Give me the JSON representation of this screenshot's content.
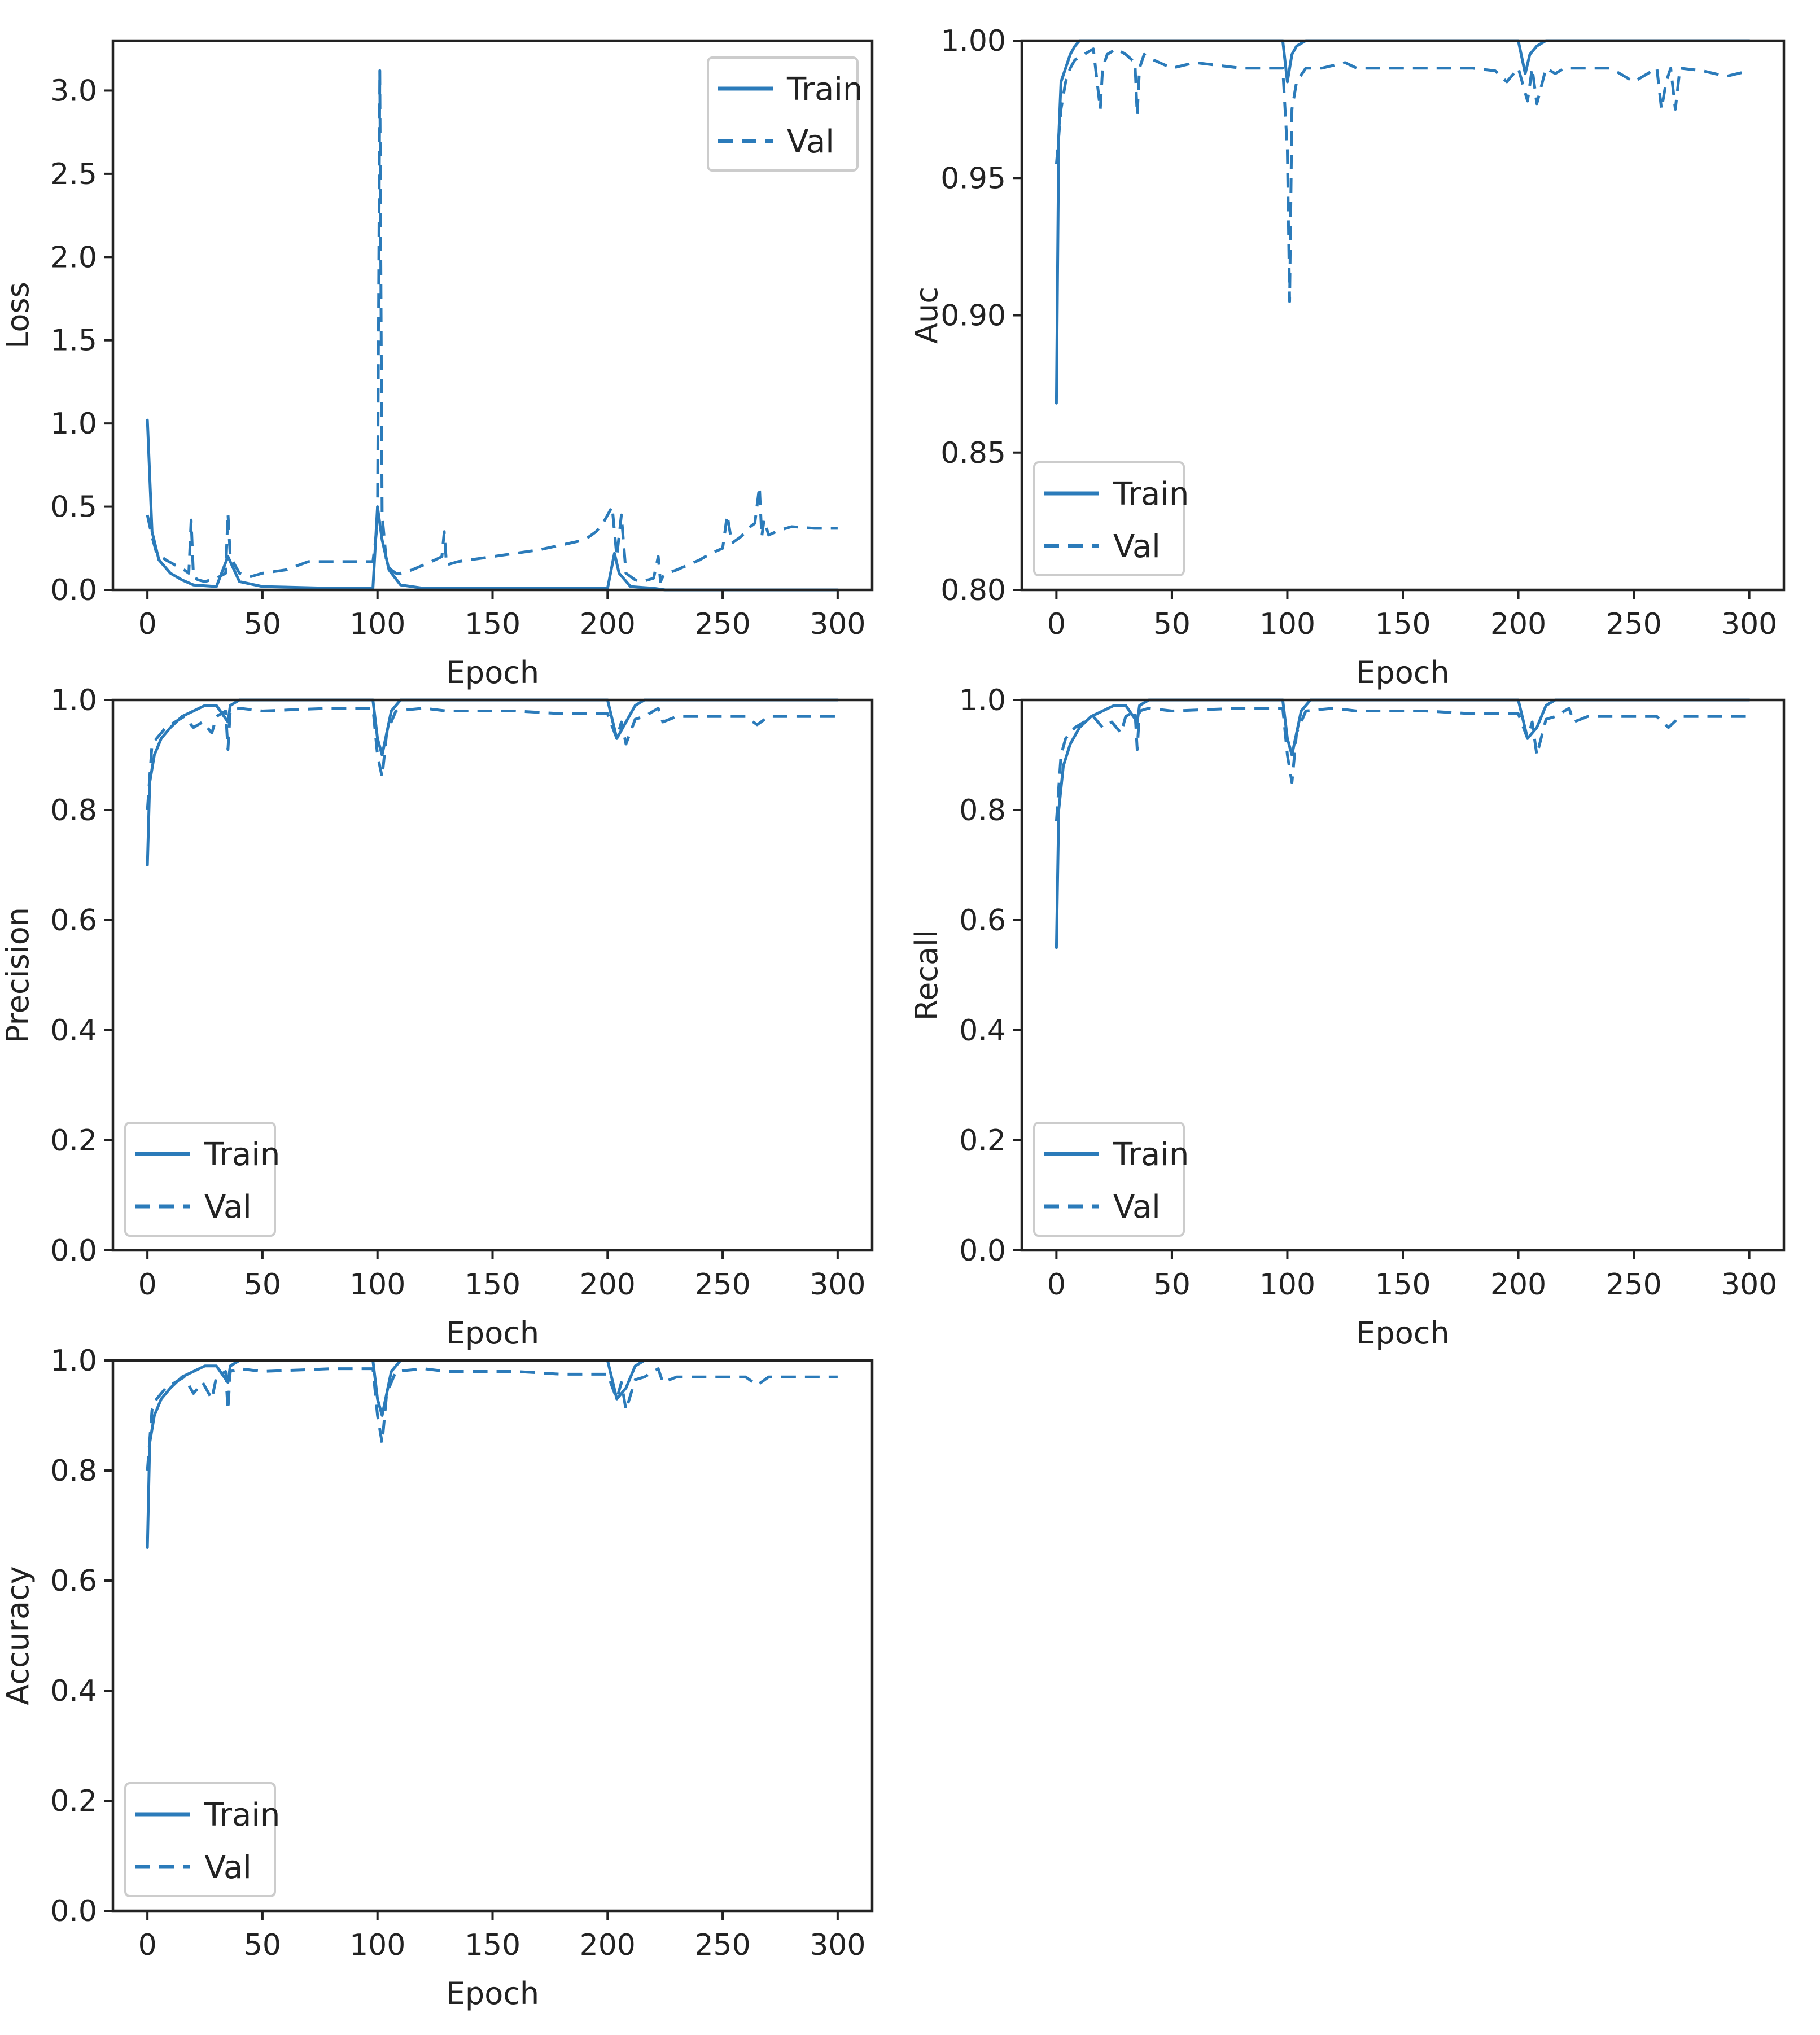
{
  "colors": {
    "series": "#2b7bba",
    "axis": "#222222",
    "legend_border": "#cccccc"
  },
  "chart_data": [
    {
      "id": "loss",
      "type": "line",
      "ylabel": "Loss",
      "xlabel": "Epoch",
      "xlim": [
        -15,
        315
      ],
      "ylim": [
        0,
        3.3
      ],
      "xticks": [
        0,
        50,
        100,
        150,
        200,
        250,
        300
      ],
      "yticks": [
        0.0,
        0.5,
        1.0,
        1.5,
        2.0,
        2.5,
        3.0
      ],
      "ytick_labels": [
        "0.0",
        "0.5",
        "1.0",
        "1.5",
        "2.0",
        "2.5",
        "3.0"
      ],
      "legend_loc": "upper right",
      "series": [
        {
          "name": "Train",
          "style": "solid",
          "x": [
            0,
            2,
            5,
            10,
            15,
            20,
            30,
            35,
            40,
            50,
            80,
            98,
            100,
            102,
            105,
            110,
            120,
            150,
            200,
            203,
            205,
            210,
            220,
            225,
            250,
            300
          ],
          "y": [
            1.02,
            0.35,
            0.18,
            0.1,
            0.06,
            0.03,
            0.02,
            0.2,
            0.05,
            0.02,
            0.01,
            0.01,
            0.5,
            0.3,
            0.12,
            0.03,
            0.01,
            0.01,
            0.01,
            0.22,
            0.1,
            0.02,
            0.01,
            0.0,
            0.0,
            0.0
          ]
        },
        {
          "name": "Val",
          "style": "dashed",
          "x": [
            0,
            2,
            4,
            8,
            12,
            16,
            18,
            19,
            20,
            22,
            25,
            30,
            34,
            35,
            36,
            38,
            40,
            45,
            50,
            60,
            70,
            80,
            90,
            98,
            100,
            101,
            102,
            104,
            106,
            108,
            110,
            115,
            120,
            125,
            128,
            129,
            130,
            135,
            140,
            150,
            160,
            170,
            180,
            190,
            195,
            198,
            200,
            202,
            204,
            206,
            208,
            210,
            212,
            215,
            220,
            222,
            223,
            224,
            226,
            230,
            235,
            240,
            245,
            250,
            252,
            254,
            256,
            258,
            260,
            262,
            264,
            266,
            267,
            268,
            270,
            275,
            280,
            290,
            300
          ],
          "y": [
            0.45,
            0.32,
            0.22,
            0.18,
            0.15,
            0.12,
            0.1,
            0.42,
            0.08,
            0.06,
            0.05,
            0.07,
            0.1,
            0.46,
            0.2,
            0.15,
            0.1,
            0.08,
            0.1,
            0.12,
            0.17,
            0.17,
            0.17,
            0.17,
            0.4,
            3.12,
            0.45,
            0.15,
            0.12,
            0.1,
            0.1,
            0.12,
            0.15,
            0.18,
            0.2,
            0.35,
            0.15,
            0.17,
            0.18,
            0.2,
            0.22,
            0.24,
            0.27,
            0.3,
            0.35,
            0.4,
            0.45,
            0.5,
            0.2,
            0.45,
            0.1,
            0.08,
            0.06,
            0.05,
            0.07,
            0.2,
            0.05,
            0.08,
            0.1,
            0.12,
            0.15,
            0.18,
            0.22,
            0.25,
            0.45,
            0.28,
            0.3,
            0.32,
            0.35,
            0.38,
            0.4,
            0.62,
            0.32,
            0.42,
            0.33,
            0.36,
            0.38,
            0.37,
            0.37
          ]
        }
      ]
    },
    {
      "id": "auc",
      "type": "line",
      "ylabel": "Auc",
      "xlabel": "Epoch",
      "xlim": [
        -15,
        315
      ],
      "ylim": [
        0.8,
        1.0
      ],
      "xticks": [
        0,
        50,
        100,
        150,
        200,
        250,
        300
      ],
      "yticks": [
        0.8,
        0.85,
        0.9,
        0.95,
        1.0
      ],
      "ytick_labels": [
        "0.80",
        "0.85",
        "0.90",
        "0.95",
        "1.00"
      ],
      "legend_loc": "lower left",
      "series": [
        {
          "name": "Train",
          "style": "solid",
          "x": [
            0,
            1,
            2,
            4,
            6,
            8,
            10,
            15,
            20,
            30,
            40,
            98,
            100,
            102,
            104,
            108,
            112,
            200,
            203,
            205,
            208,
            212,
            220,
            300
          ],
          "y": [
            0.868,
            0.965,
            0.985,
            0.99,
            0.995,
            0.998,
            1.0,
            1.0,
            1.0,
            1.0,
            1.0,
            1.0,
            0.985,
            0.995,
            0.998,
            1.0,
            1.0,
            1.0,
            0.988,
            0.995,
            0.998,
            1.0,
            1.0,
            1.0
          ]
        },
        {
          "name": "Val",
          "style": "dashed",
          "x": [
            0,
            2,
            4,
            6,
            8,
            12,
            16,
            19,
            20,
            22,
            26,
            30,
            34,
            35,
            36,
            38,
            42,
            50,
            60,
            80,
            98,
            100,
            101,
            102,
            104,
            108,
            115,
            125,
            130,
            140,
            160,
            180,
            190,
            195,
            200,
            204,
            206,
            208,
            212,
            216,
            220,
            230,
            240,
            250,
            260,
            262,
            264,
            266,
            268,
            270,
            280,
            290,
            300
          ],
          "y": [
            0.955,
            0.975,
            0.985,
            0.99,
            0.993,
            0.995,
            0.997,
            0.975,
            0.99,
            0.995,
            0.997,
            0.995,
            0.992,
            0.973,
            0.99,
            0.995,
            0.993,
            0.99,
            0.992,
            0.99,
            0.99,
            0.96,
            0.905,
            0.975,
            0.985,
            0.99,
            0.99,
            0.992,
            0.99,
            0.99,
            0.99,
            0.99,
            0.989,
            0.985,
            0.99,
            0.978,
            0.99,
            0.977,
            0.99,
            0.988,
            0.99,
            0.99,
            0.99,
            0.985,
            0.99,
            0.975,
            0.985,
            0.99,
            0.975,
            0.99,
            0.989,
            0.987,
            0.989
          ]
        }
      ]
    },
    {
      "id": "precision",
      "type": "line",
      "ylabel": "Precision",
      "xlabel": "Epoch",
      "xlim": [
        -15,
        315
      ],
      "ylim": [
        0,
        1.0
      ],
      "xticks": [
        0,
        50,
        100,
        150,
        200,
        250,
        300
      ],
      "yticks": [
        0.0,
        0.2,
        0.4,
        0.6,
        0.8,
        1.0
      ],
      "ytick_labels": [
        "0.0",
        "0.2",
        "0.4",
        "0.6",
        "0.8",
        "1.0"
      ],
      "legend_loc": "lower left",
      "series": [
        {
          "name": "Train",
          "style": "solid",
          "x": [
            0,
            1,
            3,
            6,
            10,
            15,
            20,
            25,
            30,
            35,
            36,
            38,
            40,
            45,
            50,
            98,
            100,
            102,
            106,
            110,
            120,
            200,
            204,
            208,
            212,
            216,
            220,
            230,
            250,
            300
          ],
          "y": [
            0.7,
            0.85,
            0.9,
            0.93,
            0.95,
            0.97,
            0.98,
            0.99,
            0.99,
            0.96,
            0.99,
            0.995,
            1.0,
            1.0,
            1.0,
            1.0,
            0.93,
            0.9,
            0.98,
            1.0,
            1.0,
            1.0,
            0.93,
            0.96,
            0.99,
            1.0,
            1.0,
            1.0,
            1.0,
            1.0
          ]
        },
        {
          "name": "Val",
          "style": "dashed",
          "x": [
            0,
            2,
            4,
            8,
            12,
            16,
            20,
            24,
            28,
            30,
            34,
            35,
            36,
            40,
            50,
            80,
            98,
            100,
            102,
            104,
            108,
            120,
            130,
            140,
            160,
            180,
            200,
            204,
            206,
            208,
            212,
            216,
            222,
            224,
            230,
            250,
            260,
            265,
            270,
            280,
            300
          ],
          "y": [
            0.8,
            0.92,
            0.93,
            0.95,
            0.96,
            0.97,
            0.95,
            0.96,
            0.94,
            0.97,
            0.98,
            0.91,
            0.98,
            0.985,
            0.98,
            0.985,
            0.985,
            0.9,
            0.86,
            0.94,
            0.98,
            0.985,
            0.98,
            0.98,
            0.98,
            0.975,
            0.975,
            0.93,
            0.96,
            0.92,
            0.965,
            0.97,
            0.985,
            0.96,
            0.97,
            0.97,
            0.97,
            0.955,
            0.97,
            0.97,
            0.97
          ]
        }
      ]
    },
    {
      "id": "recall",
      "type": "line",
      "ylabel": "Recall",
      "xlabel": "Epoch",
      "xlim": [
        -15,
        315
      ],
      "ylim": [
        0,
        1.0
      ],
      "xticks": [
        0,
        50,
        100,
        150,
        200,
        250,
        300
      ],
      "yticks": [
        0.0,
        0.2,
        0.4,
        0.6,
        0.8,
        1.0
      ],
      "ytick_labels": [
        "0.0",
        "0.2",
        "0.4",
        "0.6",
        "0.8",
        "1.0"
      ],
      "legend_loc": "lower left",
      "series": [
        {
          "name": "Train",
          "style": "solid",
          "x": [
            0,
            1,
            3,
            6,
            10,
            15,
            20,
            25,
            30,
            35,
            36,
            38,
            40,
            45,
            50,
            98,
            100,
            102,
            106,
            110,
            120,
            200,
            204,
            208,
            212,
            216,
            220,
            230,
            250,
            300
          ],
          "y": [
            0.55,
            0.8,
            0.88,
            0.92,
            0.95,
            0.97,
            0.98,
            0.99,
            0.99,
            0.96,
            0.99,
            0.995,
            1.0,
            1.0,
            1.0,
            1.0,
            0.93,
            0.9,
            0.98,
            1.0,
            1.0,
            1.0,
            0.93,
            0.95,
            0.99,
            1.0,
            1.0,
            1.0,
            1.0,
            1.0
          ]
        },
        {
          "name": "Val",
          "style": "dashed",
          "x": [
            0,
            2,
            4,
            8,
            12,
            16,
            20,
            24,
            28,
            30,
            34,
            35,
            36,
            40,
            50,
            80,
            98,
            100,
            102,
            104,
            108,
            120,
            130,
            140,
            160,
            180,
            200,
            204,
            206,
            208,
            212,
            216,
            222,
            224,
            230,
            250,
            260,
            265,
            270,
            280,
            300
          ],
          "y": [
            0.78,
            0.9,
            0.93,
            0.95,
            0.96,
            0.97,
            0.95,
            0.96,
            0.94,
            0.97,
            0.98,
            0.91,
            0.98,
            0.985,
            0.98,
            0.985,
            0.985,
            0.9,
            0.85,
            0.94,
            0.98,
            0.985,
            0.98,
            0.98,
            0.98,
            0.975,
            0.975,
            0.93,
            0.96,
            0.9,
            0.965,
            0.97,
            0.985,
            0.96,
            0.97,
            0.97,
            0.97,
            0.95,
            0.97,
            0.97,
            0.97
          ]
        }
      ]
    },
    {
      "id": "accuracy",
      "type": "line",
      "ylabel": "Accuracy",
      "xlabel": "Epoch",
      "xlim": [
        -15,
        315
      ],
      "ylim": [
        0,
        1.0
      ],
      "xticks": [
        0,
        50,
        100,
        150,
        200,
        250,
        300
      ],
      "yticks": [
        0.0,
        0.2,
        0.4,
        0.6,
        0.8,
        1.0
      ],
      "ytick_labels": [
        "0.0",
        "0.2",
        "0.4",
        "0.6",
        "0.8",
        "1.0"
      ],
      "legend_loc": "lower left",
      "series": [
        {
          "name": "Train",
          "style": "solid",
          "x": [
            0,
            1,
            3,
            6,
            10,
            15,
            20,
            25,
            30,
            35,
            36,
            38,
            40,
            45,
            50,
            98,
            100,
            102,
            106,
            110,
            120,
            200,
            204,
            208,
            212,
            216,
            220,
            230,
            250,
            300
          ],
          "y": [
            0.66,
            0.85,
            0.9,
            0.93,
            0.95,
            0.97,
            0.98,
            0.99,
            0.99,
            0.96,
            0.99,
            0.995,
            1.0,
            1.0,
            1.0,
            1.0,
            0.93,
            0.9,
            0.98,
            1.0,
            1.0,
            1.0,
            0.93,
            0.95,
            0.99,
            1.0,
            1.0,
            1.0,
            1.0,
            1.0
          ]
        },
        {
          "name": "Val",
          "style": "dashed",
          "x": [
            0,
            2,
            4,
            8,
            12,
            16,
            20,
            24,
            28,
            30,
            34,
            35,
            36,
            40,
            50,
            80,
            98,
            100,
            102,
            104,
            108,
            120,
            130,
            140,
            160,
            180,
            200,
            204,
            206,
            208,
            212,
            216,
            222,
            224,
            230,
            250,
            260,
            265,
            270,
            280,
            300
          ],
          "y": [
            0.8,
            0.91,
            0.93,
            0.95,
            0.96,
            0.97,
            0.94,
            0.96,
            0.93,
            0.97,
            0.98,
            0.91,
            0.98,
            0.985,
            0.98,
            0.985,
            0.985,
            0.9,
            0.85,
            0.94,
            0.98,
            0.985,
            0.98,
            0.98,
            0.98,
            0.975,
            0.975,
            0.93,
            0.96,
            0.91,
            0.965,
            0.97,
            0.985,
            0.96,
            0.97,
            0.97,
            0.97,
            0.955,
            0.97,
            0.97,
            0.97
          ]
        }
      ]
    }
  ]
}
